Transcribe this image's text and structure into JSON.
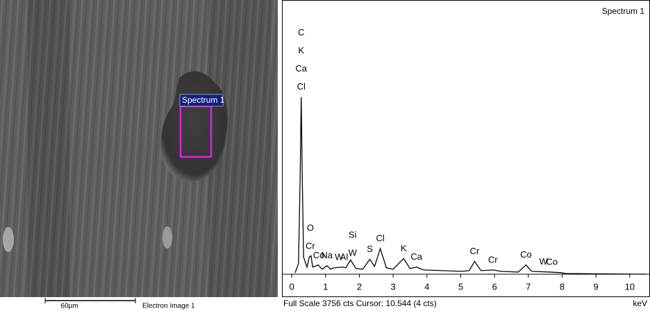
{
  "image": {
    "spectrum_label": "Spectrum 1",
    "scale_bar": "60µm",
    "caption": "Electron Image 1"
  },
  "chart_data": {
    "type": "line",
    "title": "Spectrum 1",
    "xlabel": "keV",
    "footer": "Full Scale 3756 cts Cursor: 10.544  (4 cts)",
    "color": "#000000",
    "x": [
      0.1,
      0.2,
      0.25,
      0.28,
      0.31,
      0.35,
      0.45,
      0.52,
      0.57,
      0.62,
      0.78,
      0.9,
      1.04,
      1.15,
      1.25,
      1.49,
      1.6,
      1.74,
      1.9,
      2.1,
      2.31,
      2.45,
      2.62,
      2.8,
      3.0,
      3.31,
      3.5,
      3.69,
      3.9,
      4.5,
      5.0,
      5.25,
      5.41,
      5.6,
      5.95,
      6.2,
      6.7,
      6.93,
      7.1,
      7.65,
      8.0,
      8.1,
      10.5
    ],
    "values": [
      20,
      150,
      1400,
      2490,
      1400,
      240,
      100,
      240,
      260,
      100,
      130,
      70,
      120,
      70,
      90,
      100,
      90,
      200,
      80,
      70,
      210,
      110,
      360,
      90,
      70,
      220,
      80,
      100,
      60,
      50,
      40,
      50,
      180,
      50,
      60,
      40,
      30,
      130,
      40,
      30,
      20,
      10,
      0
    ],
    "xlim": [
      -0.29,
      10.6
    ],
    "ylim": [
      0,
      3756
    ],
    "xticks": [
      0,
      1,
      2,
      3,
      4,
      5,
      6,
      7,
      8,
      9,
      10
    ],
    "annotations": [
      {
        "x": 0.28,
        "labels": [
          "C",
          "K",
          "Ca",
          "Cl"
        ]
      },
      {
        "x": 0.55,
        "labels": [
          "O",
          "Cr"
        ]
      },
      {
        "x": 0.8,
        "labels": [
          "Co"
        ]
      },
      {
        "x": 1.04,
        "labels": [
          "Na"
        ]
      },
      {
        "x": 1.4,
        "labels": [
          "W"
        ]
      },
      {
        "x": 1.55,
        "labels": [
          "Al"
        ]
      },
      {
        "x": 1.8,
        "labels": [
          "Si",
          "W"
        ]
      },
      {
        "x": 2.31,
        "labels": [
          "S"
        ]
      },
      {
        "x": 2.62,
        "labels": [
          "Cl"
        ]
      },
      {
        "x": 3.31,
        "labels": [
          "K"
        ]
      },
      {
        "x": 3.69,
        "labels": [
          "Ca"
        ]
      },
      {
        "x": 5.41,
        "labels": [
          "Cr"
        ]
      },
      {
        "x": 5.95,
        "labels": [
          "Cr"
        ]
      },
      {
        "x": 6.93,
        "labels": [
          "Co"
        ]
      },
      {
        "x": 7.45,
        "labels": [
          "W"
        ]
      },
      {
        "x": 7.7,
        "labels": [
          "Co"
        ]
      }
    ]
  }
}
